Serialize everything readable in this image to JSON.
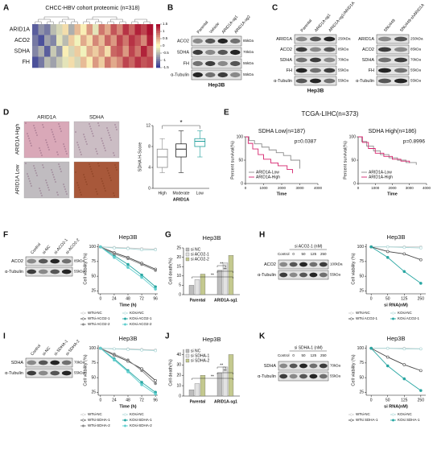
{
  "A": {
    "label": "A",
    "title": "CHCC-HBV cohort proteomic (n=318)",
    "rows": [
      "ARID1A",
      "ACO2",
      "SDHA",
      "FH"
    ],
    "heatmap": [
      [
        -1.2,
        -0.8,
        -1,
        -0.5,
        -0.3,
        0.2,
        -0.6,
        0.4,
        0.1,
        0.6,
        -0.2,
        0.8,
        0.5,
        1,
        0.7,
        1.2,
        0.9,
        1.3,
        1.1,
        1.4
      ],
      [
        -1,
        -1.3,
        -0.7,
        -0.9,
        -0.2,
        -0.5,
        0.3,
        -0.1,
        0.5,
        0.2,
        0.7,
        0.4,
        0.9,
        0.6,
        1.1,
        0.8,
        1.2,
        1,
        0.7,
        1.3
      ],
      [
        -0.9,
        -0.6,
        -1.2,
        -0.4,
        -0.8,
        0.1,
        -0.3,
        0.3,
        -0.1,
        0.5,
        0.3,
        0.6,
        0.2,
        0.9,
        1,
        0.6,
        1.1,
        0.8,
        1.3,
        0.9
      ],
      [
        -1.3,
        -1,
        -0.5,
        -0.7,
        -0.4,
        -0.2,
        0.2,
        -0.3,
        0.4,
        0.1,
        0.6,
        0.3,
        0.8,
        0.5,
        0.7,
        1.1,
        0.9,
        1.2,
        1,
        1.1
      ]
    ],
    "scale_ticks": [
      1.5,
      1,
      0.5,
      0,
      -0.5,
      -1,
      -1.5
    ]
  },
  "B": {
    "label": "B",
    "lanes": [
      "Parental",
      "Vehicle",
      "ARID1A-sg1",
      "ARID1A-sg2"
    ],
    "rows": [
      "ACO2",
      "SDHA",
      "FH",
      "α-Tubulin"
    ],
    "sizes": [
      "85kDa",
      "70kDa",
      "55kDa",
      "55kDa"
    ],
    "cell": "Hep3B"
  },
  "C": {
    "label": "C",
    "left": {
      "lanes": [
        "Parental",
        "ARID1A-sg1",
        "ARID1A-sg1/ARID1A"
      ],
      "rows": [
        "ARID1A",
        "ACO2",
        "SDHA",
        "FH",
        "α-Tubulin"
      ],
      "sizes": [
        "250kDa",
        "85kDa",
        "70kDa",
        "55kDa",
        "55kDa"
      ],
      "cell": "Hep3B"
    },
    "right": {
      "lanes": [
        "SNU449",
        "SNU449-shARID1A"
      ],
      "rows": [
        "ARID1A",
        "ACO2",
        "SDHA",
        "FH",
        "α-Tubulin"
      ],
      "sizes": [
        "250kDa",
        "85kDa",
        "70kDa",
        "55kDa",
        "55kDa"
      ]
    }
  },
  "D": {
    "label": "D",
    "image_cols": [
      "ARID1A",
      "SDHA"
    ],
    "image_rows": [
      "ARID1A High",
      "ARID1A Low"
    ],
    "chart": {
      "type": "box",
      "categories": [
        "High",
        "Moderate",
        "Low"
      ],
      "xlabel": "ARID1A",
      "ylabel": "SDHA H-Score",
      "ylim": [
        0,
        12
      ],
      "yticks": [
        0,
        4,
        8,
        12
      ],
      "colors": [
        "#8c8c8c",
        "#222222",
        "#1f9e9a"
      ],
      "stats": [
        {
          "min": 3,
          "q1": 4,
          "median": 6,
          "q3": 7.5,
          "max": 9.5
        },
        {
          "min": 3,
          "q1": 6,
          "median": 7.5,
          "q3": 8.5,
          "max": 11
        },
        {
          "min": 6,
          "q1": 8,
          "median": 9,
          "q3": 9.5,
          "max": 11
        }
      ],
      "annotation": "*"
    }
  },
  "E": {
    "label": "E",
    "title": "TCGA-LIHC(n=373)",
    "plots": [
      {
        "type": "km",
        "title": "SDHA Low(n=187)",
        "pvalue": "p=0.0387",
        "ylabel": "Percent survival(%)",
        "xlabel": "Time",
        "xlim": [
          0,
          4000
        ],
        "xticks": [
          0,
          1000,
          2000,
          3000,
          4000
        ],
        "ylim": [
          0,
          100
        ],
        "yticks": [
          0,
          50,
          100
        ],
        "series": [
          {
            "name": "ARID1A-Low",
            "color": "#8c8c8c",
            "x": [
              0,
              200,
              500,
              900,
              1300,
              1700,
              2100,
              2500,
              3000
            ],
            "values": [
              100,
              92,
              85,
              78,
              72,
              66,
              60,
              50,
              32
            ]
          },
          {
            "name": "ARID1A-High",
            "color": "#d6246e",
            "x": [
              0,
              150,
              400,
              700,
              1000,
              1400,
              1800,
              2300,
              2600
            ],
            "values": [
              100,
              86,
              74,
              62,
              52,
              44,
              38,
              30,
              22
            ]
          }
        ]
      },
      {
        "type": "km",
        "title": "SDHA High(n=186)",
        "pvalue": "p=0.8996",
        "ylabel": "Percent survival(%)",
        "xlabel": "Time",
        "xlim": [
          0,
          4000
        ],
        "xticks": [
          0,
          1000,
          2000,
          3000,
          4000
        ],
        "ylim": [
          0,
          100
        ],
        "yticks": [
          0,
          50,
          100
        ],
        "series": [
          {
            "name": "ARID1A-Low",
            "color": "#8c8c8c",
            "x": [
              0,
              200,
              500,
              900,
              1300,
              1800,
              2300,
              2800,
              3400
            ],
            "values": [
              100,
              90,
              80,
              70,
              62,
              55,
              50,
              45,
              40
            ]
          },
          {
            "name": "ARID1A-High",
            "color": "#d6246e",
            "x": [
              0,
              250,
              600,
              1000,
              1500,
              2000,
              2500,
              3000
            ],
            "values": [
              100,
              88,
              75,
              65,
              58,
              52,
              48,
              44
            ]
          }
        ]
      }
    ]
  },
  "F": {
    "label": "F",
    "blot": {
      "lanes": [
        "Control",
        "si-NC",
        "si-ACO2-1",
        "si-ACO2-2"
      ],
      "rows": [
        "ACO2",
        "α-Tubulin"
      ],
      "sizes": [
        "85kDa",
        "55kDa"
      ]
    },
    "chart": {
      "type": "line",
      "title": "Hep3B",
      "ylabel": "Cell viability (%)",
      "xlabel": "Time (h)",
      "x": [
        0,
        24,
        48,
        72,
        96
      ],
      "xlim": [
        -4,
        100
      ],
      "xticks": [
        0,
        24,
        48,
        72,
        96
      ],
      "ylim": [
        20,
        105
      ],
      "yticks": [
        25,
        50,
        75,
        100
      ],
      "series": [
        {
          "name": "WTsi-NC",
          "color": "#c8c8c8",
          "marker": "open",
          "values": [
            100,
            99,
            98,
            97,
            96
          ]
        },
        {
          "name": "KOsi-NC",
          "color": "#a9d6d6",
          "marker": "open",
          "values": [
            100,
            98,
            97,
            95,
            95
          ]
        },
        {
          "name": "WTsi-ACO2-1",
          "color": "#444444",
          "marker": "open",
          "values": [
            100,
            90,
            82,
            72,
            62
          ]
        },
        {
          "name": "KOsi-ACO2-1",
          "color": "#2aa7a3",
          "marker": "filled",
          "values": [
            100,
            85,
            70,
            52,
            32
          ]
        },
        {
          "name": "WTsi-ACO2-2",
          "color": "#8a8a8a",
          "marker": "filled",
          "values": [
            100,
            88,
            80,
            70,
            60
          ]
        },
        {
          "name": "KOsi-ACO2-2",
          "color": "#62cfcf",
          "marker": "filled",
          "values": [
            100,
            82,
            65,
            48,
            28
          ]
        }
      ]
    }
  },
  "G": {
    "label": "G",
    "chart": {
      "type": "bar",
      "title": "Hep3B",
      "ylabel": "Cell death(%)",
      "categories": [
        "Parental",
        "ARID1A-sg1"
      ],
      "ylim": [
        0,
        25
      ],
      "yticks": [
        0,
        5,
        10,
        15,
        20,
        25
      ],
      "series": [
        {
          "name": "si NC",
          "color": "#bdbdbd",
          "values": [
            5,
            13
          ]
        },
        {
          "name": "si ACO2-1",
          "color": "#e2e2e2",
          "values": [
            8,
            17
          ]
        },
        {
          "name": "si ACO2-2",
          "color": "#c4c98f",
          "values": [
            11,
            21
          ]
        }
      ],
      "annotations": [
        "**",
        "**",
        "**"
      ]
    }
  },
  "H": {
    "label": "H",
    "blot": {
      "group": "si ACO2-1 (nM)",
      "lanes": [
        "Control",
        "0",
        "50",
        "125",
        "250"
      ],
      "rows": [
        "ACO2",
        "α-Tubulin"
      ],
      "sizes": [
        "100kDa",
        "55kDa"
      ]
    },
    "chart": {
      "type": "line",
      "title": "Hep3B",
      "ylabel": "Cell viability (%)",
      "xlabel": "si RNA(nM)",
      "categories": [
        "0",
        "50",
        "125",
        "250"
      ],
      "ylim": [
        20,
        105
      ],
      "yticks": [
        25,
        50,
        75,
        100
      ],
      "series": [
        {
          "name": "WTsi-NC",
          "color": "#c8c8c8",
          "marker": "open",
          "values": [
            100,
            100,
            100,
            100
          ]
        },
        {
          "name": "KOsi-NC",
          "color": "#a9d6d6",
          "marker": "open",
          "values": [
            100,
            100,
            99,
            98
          ]
        },
        {
          "name": "WTsi ACO2-1",
          "color": "#444444",
          "marker": "open",
          "values": [
            100,
            92,
            88,
            78
          ]
        },
        {
          "name": "KOsi ACO2-1",
          "color": "#2aa7a3",
          "marker": "filled",
          "values": [
            100,
            82,
            58,
            38
          ]
        }
      ]
    }
  },
  "I": {
    "label": "I",
    "blot": {
      "lanes": [
        "Control",
        "si-NC",
        "si-SDHA-1",
        "si-SDHA-2"
      ],
      "rows": [
        "SDHA",
        "α-Tubulin"
      ],
      "sizes": [
        "70kDa",
        "55kDa"
      ]
    },
    "chart": {
      "type": "line",
      "title": "Hep3B",
      "ylabel": "Cell viability (%)",
      "xlabel": "Time (h)",
      "x": [
        0,
        24,
        48,
        72,
        96
      ],
      "xlim": [
        -4,
        100
      ],
      "xticks": [
        0,
        24,
        48,
        72,
        96
      ],
      "ylim": [
        20,
        105
      ],
      "yticks": [
        25,
        50,
        75,
        100
      ],
      "series": [
        {
          "name": "WTsi-NC",
          "color": "#c8c8c8",
          "marker": "open",
          "values": [
            100,
            99,
            99,
            98,
            97
          ]
        },
        {
          "name": "KOsi-NC",
          "color": "#a9d6d6",
          "marker": "open",
          "values": [
            100,
            99,
            98,
            97,
            96
          ]
        },
        {
          "name": "WTsi-SDHA-1",
          "color": "#444444",
          "marker": "open",
          "values": [
            100,
            88,
            78,
            65,
            45
          ]
        },
        {
          "name": "KOsi-SDHA-1",
          "color": "#2aa7a3",
          "marker": "filled",
          "values": [
            100,
            82,
            62,
            42,
            25
          ]
        },
        {
          "name": "WTsi-SDHA-2",
          "color": "#8a8a8a",
          "marker": "filled",
          "values": [
            100,
            90,
            80,
            62,
            40
          ]
        },
        {
          "name": "KOsi-SDHA-2",
          "color": "#62cfcf",
          "marker": "filled",
          "values": [
            100,
            80,
            60,
            38,
            22
          ]
        }
      ]
    }
  },
  "J": {
    "label": "J",
    "chart": {
      "type": "bar",
      "title": "Hep3B",
      "ylabel": "Cell death(%)",
      "categories": [
        "Parental",
        "ARID1A-sg1"
      ],
      "ylim": [
        0,
        45
      ],
      "yticks": [
        0,
        10,
        20,
        30,
        40
      ],
      "series": [
        {
          "name": "si NC",
          "color": "#bdbdbd",
          "values": [
            6,
            22
          ]
        },
        {
          "name": "si SDHA-1",
          "color": "#e2e2e2",
          "values": [
            12,
            28
          ]
        },
        {
          "name": "si SDHA-2",
          "color": "#c4c98f",
          "values": [
            20,
            40
          ]
        }
      ],
      "annotations": [
        "**",
        "**",
        "**"
      ]
    }
  },
  "K": {
    "label": "K",
    "blot": {
      "group": "si SDHA-1 (nM)",
      "lanes": [
        "Control",
        "0",
        "50",
        "125",
        "250"
      ],
      "rows": [
        "SDHA",
        "α-Tubulin"
      ],
      "sizes": [
        "70kDa",
        "55kDa"
      ]
    },
    "chart": {
      "type": "line",
      "title": "Hep3B",
      "ylabel": "Cell viability (%)",
      "xlabel": "si RNA(nM)",
      "categories": [
        "0",
        "50",
        "125",
        "250"
      ],
      "ylim": [
        20,
        105
      ],
      "yticks": [
        25,
        50,
        75,
        100
      ],
      "series": [
        {
          "name": "WTsi-NC",
          "color": "#c8c8c8",
          "marker": "open",
          "values": [
            100,
            100,
            100,
            99
          ]
        },
        {
          "name": "KOsi-NC",
          "color": "#a9d6d6",
          "marker": "open",
          "values": [
            100,
            100,
            99,
            99
          ]
        },
        {
          "name": "WTsi SDHA-1",
          "color": "#444444",
          "marker": "open",
          "values": [
            100,
            85,
            72,
            62
          ]
        },
        {
          "name": "KOsi SDHA-1",
          "color": "#2aa7a3",
          "marker": "filled",
          "values": [
            100,
            70,
            48,
            28
          ]
        }
      ]
    }
  }
}
